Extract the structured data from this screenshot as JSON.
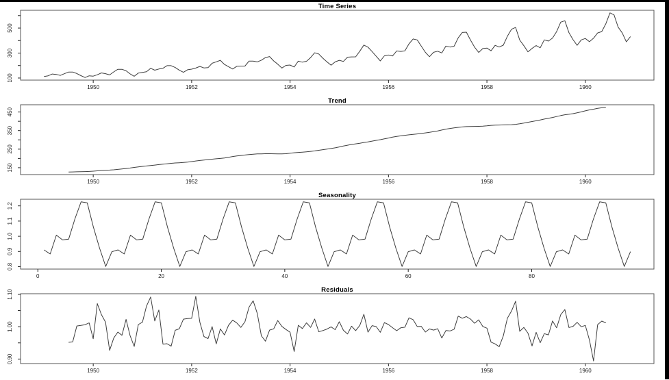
{
  "page": {
    "background": "#ffffff",
    "border_color": "#000000",
    "line_color": "#3d3d3d",
    "box_color": "#545454",
    "tick_color": "#222222"
  },
  "chart_data": {
    "type": "line",
    "description": "Classical multiplicative time-series decomposition, four stacked line panels",
    "panels": [
      {
        "id": "time-series",
        "title": "Time Series",
        "x_start": 1949.0,
        "x_step": 0.0833333,
        "xlim": [
          1948.523,
          1961.394
        ],
        "ylim": [
          83.3,
          642.7
        ],
        "xticks": [
          {
            "v": 1950,
            "label": "1950"
          },
          {
            "v": 1952,
            "label": "1952"
          },
          {
            "v": 1954,
            "label": "1954"
          },
          {
            "v": 1956,
            "label": "1956"
          },
          {
            "v": 1958,
            "label": "1958"
          },
          {
            "v": 1960,
            "label": "1960"
          }
        ],
        "yticks": [
          {
            "v": 100,
            "label": "100"
          },
          {
            "v": 200,
            "label": ""
          },
          {
            "v": 300,
            "label": "300"
          },
          {
            "v": 400,
            "label": ""
          },
          {
            "v": 500,
            "label": "500"
          },
          {
            "v": 600,
            "label": ""
          }
        ],
        "values": [
          112,
          118,
          132,
          129,
          121,
          135,
          148,
          148,
          136,
          119,
          104,
          118,
          115,
          126,
          141,
          135,
          125,
          149,
          170,
          170,
          158,
          133,
          114,
          140,
          145,
          150,
          178,
          163,
          172,
          178,
          199,
          199,
          184,
          162,
          146,
          166,
          171,
          180,
          193,
          181,
          183,
          218,
          230,
          242,
          209,
          191,
          172,
          194,
          196,
          196,
          236,
          235,
          229,
          243,
          264,
          272,
          237,
          211,
          180,
          201,
          204,
          188,
          235,
          227,
          234,
          264,
          302,
          293,
          259,
          229,
          203,
          229,
          242,
          233,
          267,
          269,
          270,
          315,
          364,
          347,
          312,
          274,
          237,
          278,
          284,
          277,
          317,
          313,
          318,
          374,
          413,
          405,
          355,
          306,
          271,
          306,
          315,
          301,
          356,
          348,
          355,
          422,
          465,
          467,
          404,
          347,
          305,
          336,
          340,
          318,
          362,
          348,
          363,
          435,
          491,
          505,
          404,
          359,
          310,
          337,
          360,
          342,
          406,
          396,
          420,
          472,
          548,
          559,
          463,
          407,
          362,
          405,
          417,
          391,
          419,
          461,
          472,
          535,
          622,
          606,
          508,
          461,
          390,
          432
        ]
      },
      {
        "id": "trend",
        "title": "Trend",
        "x_start": 1949.5,
        "x_step": 0.0833333,
        "xlim": [
          1948.523,
          1961.394
        ],
        "ylim": [
          112.9,
          489.0
        ],
        "xticks": [
          {
            "v": 1950,
            "label": "1950"
          },
          {
            "v": 1952,
            "label": "1952"
          },
          {
            "v": 1954,
            "label": "1954"
          },
          {
            "v": 1956,
            "label": "1956"
          },
          {
            "v": 1958,
            "label": "1958"
          },
          {
            "v": 1960,
            "label": "1960"
          }
        ],
        "yticks": [
          {
            "v": 150,
            "label": "150"
          },
          {
            "v": 200,
            "label": ""
          },
          {
            "v": 250,
            "label": "250"
          },
          {
            "v": 300,
            "label": ""
          },
          {
            "v": 350,
            "label": "350"
          },
          {
            "v": 400,
            "label": ""
          },
          {
            "v": 450,
            "label": "450"
          }
        ],
        "values": [
          126.79,
          127.25,
          127.96,
          128.58,
          129.0,
          129.75,
          131.25,
          133.08,
          134.92,
          136.42,
          137.42,
          138.75,
          140.92,
          143.17,
          145.71,
          148.42,
          151.54,
          154.71,
          157.13,
          159.54,
          161.83,
          164.13,
          166.67,
          169.08,
          171.25,
          173.58,
          175.46,
          176.83,
          178.04,
          180.17,
          183.13,
          186.21,
          189.04,
          191.29,
          193.58,
          195.83,
          198.04,
          199.75,
          202.21,
          206.25,
          210.42,
          213.38,
          215.83,
          218.5,
          220.92,
          222.92,
          224.08,
          224.71,
          225.33,
          225.33,
          224.96,
          224.58,
          224.46,
          225.54,
          228.0,
          230.46,
          232.25,
          233.92,
          235.63,
          237.75,
          240.5,
          243.96,
          247.17,
          250.25,
          253.5,
          257.13,
          261.83,
          266.67,
          271.13,
          275.21,
          278.5,
          281.96,
          285.75,
          289.33,
          293.25,
          297.17,
          301.0,
          305.46,
          309.96,
          314.42,
          318.63,
          321.75,
          324.5,
          327.08,
          329.54,
          331.83,
          334.46,
          337.54,
          340.54,
          344.08,
          348.25,
          353.0,
          357.63,
          361.38,
          364.5,
          367.17,
          369.46,
          371.21,
          372.17,
          372.42,
          372.75,
          373.63,
          375.25,
          377.92,
          379.5,
          380.0,
          380.71,
          380.96,
          381.83,
          383.67,
          386.5,
          390.33,
          394.71,
          398.63,
          402.54,
          407.17,
          411.88,
          416.33,
          420.5,
          425.5,
          430.71,
          435.13,
          437.71,
          440.96,
          445.83,
          450.63,
          456.33,
          461.38,
          465.21,
          469.33,
          472.75,
          475.04
        ]
      },
      {
        "id": "seasonality",
        "title": "Seasonality",
        "x_start": 1,
        "x_step": 1,
        "xlim": [
          -2.8,
          99.8
        ],
        "ylim": [
          0.7842,
          1.2436
        ],
        "xticks": [
          {
            "v": 0,
            "label": "0"
          },
          {
            "v": 20,
            "label": "20"
          },
          {
            "v": 40,
            "label": "40"
          },
          {
            "v": 60,
            "label": "60"
          },
          {
            "v": 80,
            "label": "80"
          }
        ],
        "yticks": [
          {
            "v": 0.8,
            "label": "0.8"
          },
          {
            "v": 0.9,
            "label": "0.9"
          },
          {
            "v": 1.0,
            "label": "1.0"
          },
          {
            "v": 1.1,
            "label": "1.1"
          },
          {
            "v": 1.2,
            "label": "1.2"
          }
        ],
        "cycles": 8,
        "figure": [
          0.9102,
          0.8836,
          1.0074,
          0.9759,
          0.9814,
          1.1128,
          1.2266,
          1.2199,
          1.0605,
          0.9218,
          0.8012,
          0.8988
        ]
      },
      {
        "id": "residuals",
        "title": "Residuals",
        "x_start": 1949.5,
        "x_step": 0.0833333,
        "xlim": [
          1948.523,
          1961.394
        ],
        "ylim": [
          0.886,
          1.102
        ],
        "xticks": [
          {
            "v": 1950,
            "label": "1950"
          },
          {
            "v": 1952,
            "label": "1952"
          },
          {
            "v": 1954,
            "label": "1954"
          },
          {
            "v": 1956,
            "label": "1956"
          },
          {
            "v": 1958,
            "label": "1958"
          },
          {
            "v": 1960,
            "label": "1960"
          }
        ],
        "yticks": [
          {
            "v": 0.9,
            "label": "0.90"
          },
          {
            "v": 0.95,
            "label": ""
          },
          {
            "v": 1.0,
            "label": "1.00"
          },
          {
            "v": 1.05,
            "label": ""
          },
          {
            "v": 1.1,
            "label": "1.10"
          }
        ],
        "derived": "observed / (trend * seasonal)",
        "obs_offset": 6
      }
    ]
  }
}
